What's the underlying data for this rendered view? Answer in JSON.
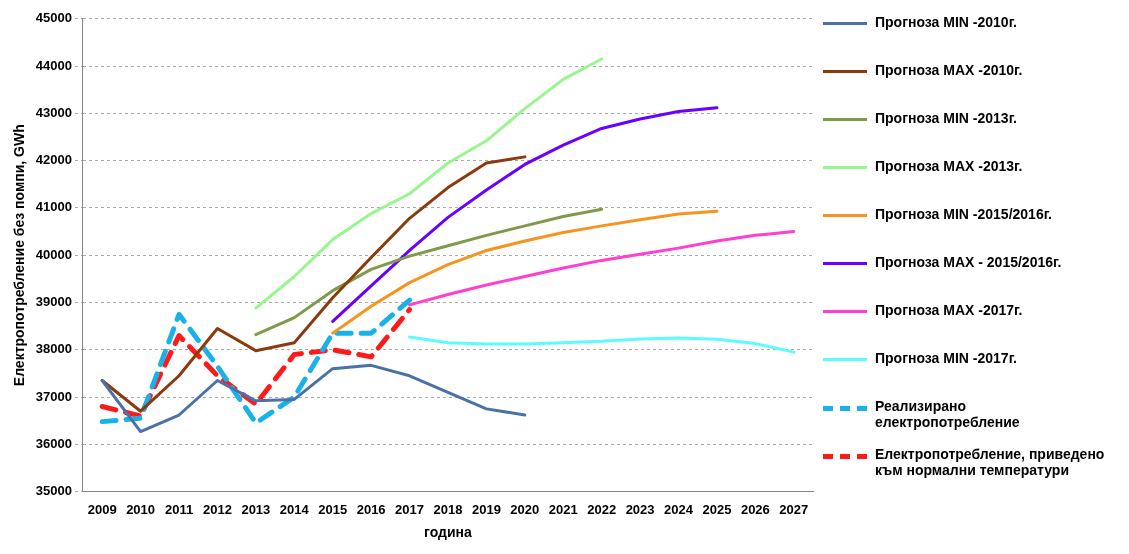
{
  "chart_data": {
    "type": "line",
    "xlabel": "година",
    "ylabel": "Електропотребление без помпи, GWh",
    "categories": [
      "2009",
      "2010",
      "2011",
      "2012",
      "2013",
      "2014",
      "2015",
      "2016",
      "2017",
      "2018",
      "2019",
      "2020",
      "2021",
      "2022",
      "2023",
      "2024",
      "2025",
      "2026",
      "2027"
    ],
    "ylim": [
      35000,
      45000
    ],
    "yticks": [
      35000,
      36000,
      37000,
      38000,
      39000,
      40000,
      41000,
      42000,
      43000,
      44000,
      45000
    ],
    "grid": "y",
    "legend": "right",
    "marker": "none",
    "series": [
      {
        "name": "Прогноза MIN -2010г.",
        "color": "#4a72a8",
        "values": [
          37350,
          36270,
          36620,
          37350,
          36920,
          36950,
          37600,
          37670,
          37450,
          37100,
          36750,
          36620,
          null,
          null,
          null,
          null,
          null,
          null,
          null
        ]
      },
      {
        "name": "Прогноза MAX -2010г.",
        "color": "#8b3a0e",
        "values": [
          37350,
          36700,
          37450,
          38450,
          37980,
          38150,
          39100,
          39950,
          40780,
          41430,
          41950,
          42080,
          null,
          null,
          null,
          null,
          null,
          null,
          null
        ]
      },
      {
        "name": "Прогноза MIN -2013г.",
        "color": "#7f9a48",
        "values": [
          null,
          null,
          null,
          null,
          38320,
          38680,
          39250,
          39700,
          39980,
          40200,
          40420,
          40620,
          40820,
          40970,
          null,
          null,
          null,
          null,
          null
        ]
      },
      {
        "name": "Прогноза MAX -2013г.",
        "color": "#99f58f",
        "values": [
          null,
          null,
          null,
          null,
          38880,
          39550,
          40330,
          40880,
          41300,
          41950,
          42420,
          43100,
          43720,
          44150,
          null,
          null,
          null,
          null,
          null
        ]
      },
      {
        "name": "Прогноза MIN -2015/2016г.",
        "color": "#f79420",
        "values": [
          null,
          null,
          null,
          null,
          null,
          null,
          38350,
          38920,
          39420,
          39800,
          40100,
          40300,
          40480,
          40620,
          40750,
          40870,
          40930,
          null,
          null
        ]
      },
      {
        "name": "Прогноза MAX - 2015/2016г.",
        "color": "#6a00ff",
        "values": [
          null,
          null,
          null,
          null,
          null,
          null,
          38600,
          39350,
          40100,
          40800,
          41380,
          41920,
          42330,
          42680,
          42880,
          43040,
          43120,
          null,
          null
        ]
      },
      {
        "name": "Прогноза MAX -2017г.",
        "color": "#ff3fcf",
        "values": [
          null,
          null,
          null,
          null,
          null,
          null,
          null,
          null,
          38950,
          39170,
          39370,
          39550,
          39730,
          39890,
          40020,
          40150,
          40300,
          40420,
          40500
        ]
      },
      {
        "name": "Прогноза MIN -2017г.",
        "color": "#5cfbff",
        "values": [
          null,
          null,
          null,
          null,
          null,
          null,
          null,
          null,
          38270,
          38150,
          38120,
          38120,
          38150,
          38180,
          38230,
          38250,
          38220,
          38130,
          37950
        ]
      },
      {
        "name": "Реализирано електропотребление",
        "color": "#19b2e8",
        "line_style": "dashed",
        "values": [
          36480,
          36550,
          38750,
          37650,
          36450,
          37000,
          38350,
          38350,
          39050,
          null,
          null,
          null,
          null,
          null,
          null,
          null,
          null,
          null,
          null
        ]
      },
      {
        "name": "Електропотребление, приведено към нормални температури",
        "color": "#ff1a1a",
        "line_style": "dashed",
        "values": [
          36800,
          36600,
          38300,
          37450,
          36850,
          37900,
          38000,
          37850,
          38850,
          null,
          null,
          null,
          null,
          null,
          null,
          null,
          null,
          null,
          null
        ]
      }
    ]
  }
}
